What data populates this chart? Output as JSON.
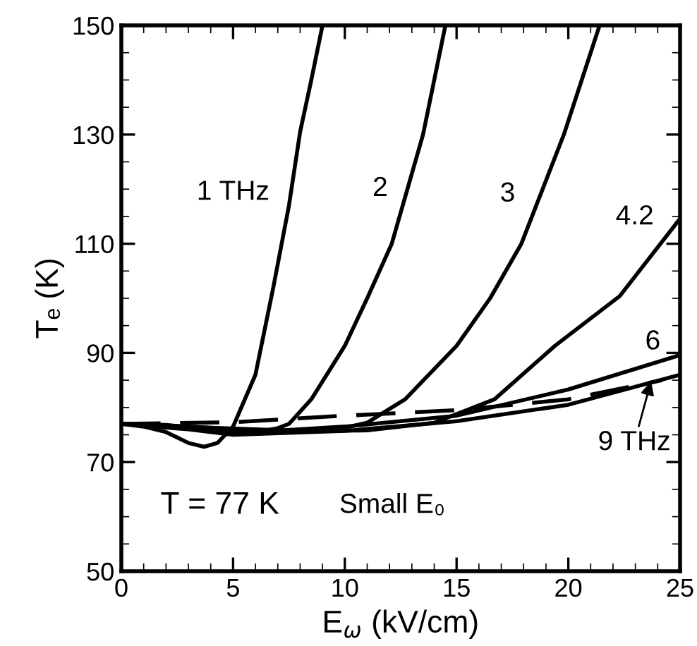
{
  "chart_data": {
    "type": "line",
    "xlabel": "E$_{ω}$ (kV/cm)",
    "ylabel": "Tₑ (K)",
    "xlim": [
      0,
      25
    ],
    "ylim": [
      50,
      150
    ],
    "xticks": [
      0,
      5,
      10,
      15,
      20,
      25
    ],
    "yticks": [
      50,
      70,
      90,
      110,
      130,
      150
    ],
    "grid": false,
    "legend": false,
    "marker": "none",
    "series": [
      {
        "color": "#000000",
        "x": [
          0,
          1,
          2,
          3,
          3.7,
          4.3,
          5,
          6,
          6.8,
          7.5,
          8.0,
          8.5,
          9.0
        ],
        "values": [
          77,
          76.5,
          75.5,
          73.5,
          72.8,
          73.5,
          76.5,
          86,
          102,
          117,
          130.5,
          140,
          150
        ]
      },
      {
        "color": "#000000",
        "x": [
          0,
          2,
          4,
          5,
          6,
          7,
          7.5,
          8.5,
          10,
          11,
          12.1,
          13.5,
          14.5
        ],
        "values": [
          77,
          76.8,
          76,
          75.5,
          75.5,
          76.2,
          77,
          81.5,
          91.3,
          100,
          110,
          130,
          150
        ]
      },
      {
        "color": "#000000",
        "x": [
          0,
          3,
          6,
          8,
          10,
          11,
          12.7,
          15,
          16.5,
          17.9,
          19.8,
          21.4
        ],
        "values": [
          77,
          76.5,
          75.8,
          75.5,
          76.3,
          77.2,
          81.5,
          91.3,
          100,
          110,
          130,
          150
        ]
      },
      {
        "color": "#000000",
        "x": [
          0,
          4,
          8,
          11,
          14,
          16.7,
          19.4,
          22.3,
          25
        ],
        "values": [
          77,
          76.3,
          75.7,
          75.8,
          77.2,
          81.5,
          91.3,
          100.4,
          114.6
        ]
      },
      {
        "color": "#000000",
        "x": [
          0,
          3,
          6,
          10,
          15,
          20,
          25
        ],
        "values": [
          77,
          76.2,
          75.5,
          76.5,
          78.5,
          83.3,
          89.6
        ]
      },
      {
        "color": "#000000",
        "x": [
          0,
          3,
          5,
          10,
          15,
          20,
          25
        ],
        "values": [
          77,
          76,
          75,
          75.7,
          77.5,
          80.5,
          86
        ]
      },
      {
        "color": "#000000",
        "line_style": "dashed",
        "x": [
          0,
          5,
          10,
          15,
          20,
          24.2
        ],
        "values": [
          77,
          77.3,
          78.5,
          79.5,
          81.5,
          85
        ]
      }
    ],
    "annotations": [
      {
        "text": "1 THz",
        "x": 7.5,
        "y": 117
      },
      {
        "text": "2",
        "x": 12.8,
        "y": 117.7
      },
      {
        "text": "3",
        "x": 18.5,
        "y": 116.7
      },
      {
        "text": "4.2",
        "x": 24.7,
        "y": 112.5
      },
      {
        "text": "6",
        "x": 25,
        "y": 89.6
      },
      "T = 77 K",
      "Small E₀",
      {
        "text": "9 THz",
        "x": 23.7,
        "y": 84.8
      }
    ]
  }
}
